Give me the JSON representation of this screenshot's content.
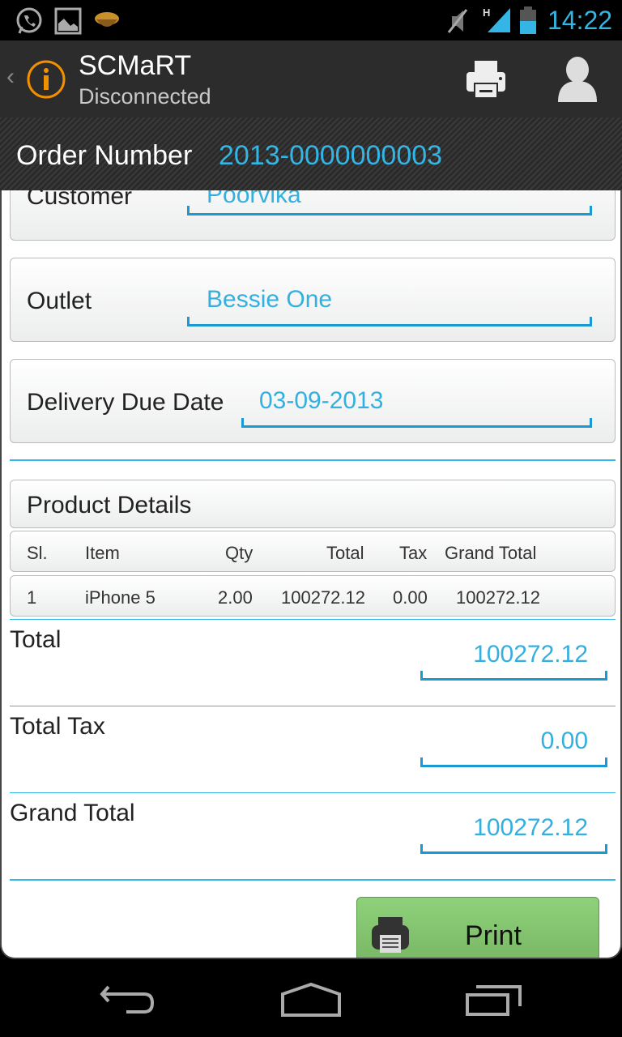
{
  "status_bar": {
    "time": "14:22",
    "icons": [
      "whatsapp-icon",
      "gallery-icon",
      "app-icon",
      "mute-icon",
      "signal-h-icon",
      "battery-icon"
    ]
  },
  "action_bar": {
    "title": "SCMaRT",
    "subtitle": "Disconnected",
    "icons": [
      "back-chevron-icon",
      "info-icon",
      "printer-icon",
      "user-icon"
    ]
  },
  "order": {
    "label": "Order Number",
    "value": "2013-0000000003"
  },
  "form": {
    "customer": {
      "label": "Customer",
      "value": "Poorvika"
    },
    "outlet": {
      "label": "Outlet",
      "value": "Bessie One"
    },
    "delivery": {
      "label": "Delivery Due Date",
      "value": "03-09-2013"
    }
  },
  "products": {
    "title": "Product Details",
    "headers": [
      "Sl.",
      "Item",
      "Qty",
      "Total",
      "Tax",
      "Grand Total"
    ],
    "rows": [
      [
        "1",
        "iPhone 5",
        "2.00",
        "100272.12",
        "0.00",
        "100272.12"
      ]
    ]
  },
  "totals": {
    "total": {
      "label": "Total",
      "value": "100272.12"
    },
    "tax": {
      "label": "Total Tax",
      "value": "0.00"
    },
    "grand": {
      "label": "Grand Total",
      "value": "100272.12"
    }
  },
  "print_button": {
    "label": "Print"
  },
  "colors": {
    "accent": "#33b5e5",
    "button": "#86c873"
  }
}
